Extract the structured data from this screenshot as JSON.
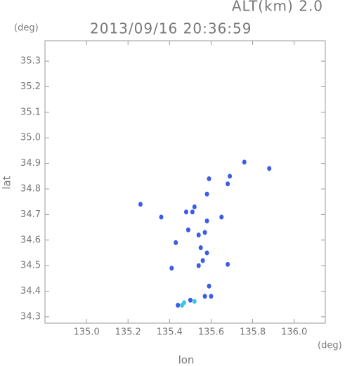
{
  "chart_data": {
    "type": "scatter",
    "title": "2013/09/16 20:36:59",
    "subtitle": "ALT(km) 2.0",
    "x_label": "lon",
    "x_unit": "(deg)",
    "y_label": "lat",
    "y_unit": "(deg)",
    "xlim": [
      134.8,
      136.15
    ],
    "ylim": [
      34.275,
      35.38
    ],
    "xticks": [
      {
        "value": 135.0,
        "label": "135.0"
      },
      {
        "value": 135.2,
        "label": "135.2"
      },
      {
        "value": 135.4,
        "label": "135.4"
      },
      {
        "value": 135.6,
        "label": "135.6"
      },
      {
        "value": 135.8,
        "label": "135.8"
      },
      {
        "value": 136.0,
        "label": "136.0"
      }
    ],
    "yticks": [
      {
        "value": 34.3,
        "label": "34.3"
      },
      34.4,
      34.5,
      34.6,
      34.7,
      34.8,
      34.9,
      {
        "value": 35.0,
        "label": "35.0"
      },
      35.1,
      35.2,
      35.3
    ],
    "series": [
      {
        "color": "#3a5ce8",
        "x": [
          135.76,
          135.88,
          135.59,
          135.69,
          135.68,
          135.58,
          135.26,
          135.52,
          135.36,
          135.48,
          135.51,
          135.58,
          135.65,
          135.49,
          135.57,
          135.54,
          135.43,
          135.55,
          135.58,
          135.56,
          135.41,
          135.54,
          135.68,
          135.59,
          135.57,
          135.6,
          135.5,
          135.44
        ],
        "values": [
          34.905,
          34.88,
          34.84,
          34.85,
          34.82,
          34.78,
          34.74,
          34.73,
          34.69,
          34.71,
          34.71,
          34.675,
          34.69,
          34.64,
          34.63,
          34.62,
          34.59,
          34.57,
          34.55,
          34.52,
          34.49,
          34.5,
          34.505,
          34.42,
          34.38,
          34.38,
          34.365,
          34.345
        ]
      },
      {
        "color": "#3cc8e0",
        "x": [
          135.47,
          135.52,
          135.46
        ],
        "values": [
          34.355,
          34.36,
          34.345
        ]
      }
    ]
  }
}
